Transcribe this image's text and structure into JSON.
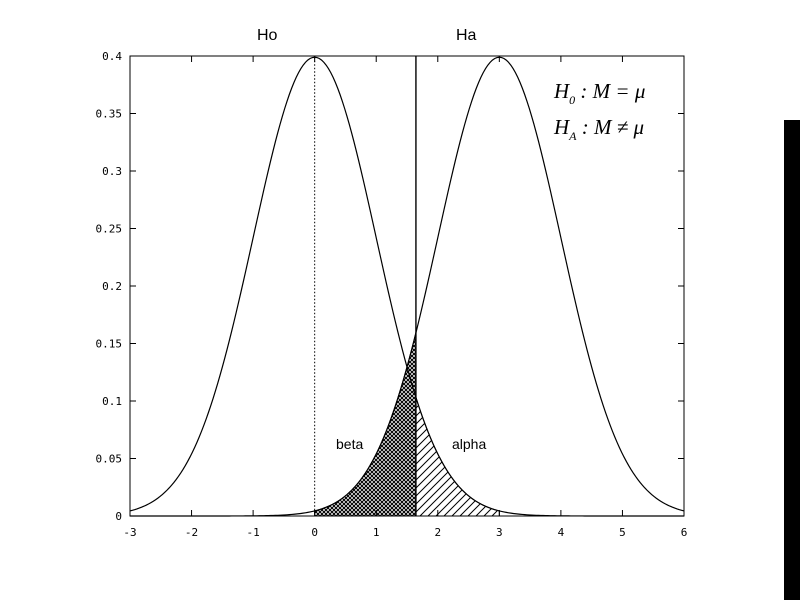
{
  "slide": {
    "accent_right_top": "#ffffff",
    "accent_right_bottom": "#000000"
  },
  "chart_data": {
    "type": "line",
    "x_ticks": [
      "-3",
      "-2",
      "-1",
      "0",
      "1",
      "2",
      "3",
      "4",
      "5",
      "6"
    ],
    "y_ticks": [
      "0",
      "0.05",
      "0.1",
      "0.15",
      "0.2",
      "0.25",
      "0.3",
      "0.35",
      "0.4"
    ],
    "xlim": [
      -3,
      6
    ],
    "ylim": [
      0,
      0.4
    ],
    "grid": false,
    "series": [
      {
        "name": "Ho",
        "distribution": "normal",
        "mean": 0,
        "sd": 1
      },
      {
        "name": "Ha",
        "distribution": "normal",
        "mean": 3,
        "sd": 1
      }
    ],
    "critical_value": 1.645,
    "mean_marker_x": 0,
    "shaded_regions": [
      {
        "label": "beta",
        "pattern": "crosshatch",
        "from": 0,
        "to": 1.645,
        "under": "Ha"
      },
      {
        "label": "alpha",
        "pattern": "diagonal",
        "from": 1.645,
        "to": 3,
        "under": "Ho"
      }
    ],
    "annotations": {
      "ho_label": "Ho",
      "ha_label": "Ha",
      "beta_label": "beta",
      "alpha_label": "alpha",
      "h0_main": "H",
      "h0_sub": "0",
      "h0_rest": " : M = μ",
      "ha_main": "H",
      "ha_sub": "A",
      "ha_rest": " : M ≠ μ"
    }
  }
}
